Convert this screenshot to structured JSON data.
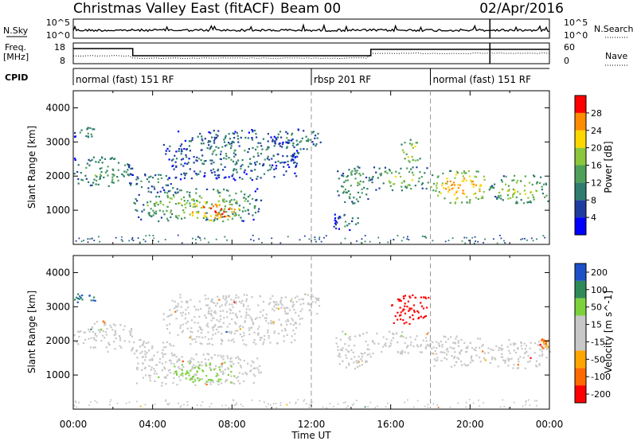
{
  "header": {
    "title": "Christmas Valley East (fitACF)",
    "beam": "Beam 00",
    "date": "02/Apr/2016"
  },
  "panel_labels": {
    "nsky": "N.Sky",
    "nsearch": "N.Search",
    "freq_line1": "Freq.",
    "freq_line2": "[MHz]",
    "nave": "Nave",
    "cpid": "CPID"
  },
  "top_axes": {
    "noise_ticks": [
      "10^5",
      "10^0"
    ],
    "freq_ticks": [
      "18",
      "8"
    ],
    "nave_ticks": [
      "60",
      "0"
    ]
  },
  "cpid_segments": [
    {
      "label": "normal (fast) 151 RF",
      "start": 0,
      "end": 12
    },
    {
      "label": "rbsp 201 RF",
      "start": 12,
      "end": 18
    },
    {
      "label": "normal (fast) 151 RF",
      "start": 18,
      "end": 24
    }
  ],
  "chart_data": [
    {
      "type": "heatmap",
      "title": "",
      "ylabel": "Slant Range [km]",
      "x_range": [
        0,
        24
      ],
      "ylim": [
        0,
        4500
      ],
      "y_ticks": [
        "1000",
        "2000",
        "3000",
        "4000"
      ],
      "colorbar": {
        "label": "Power [dB]",
        "ticks": [
          "4",
          "8",
          "12",
          "16",
          "20",
          "24",
          "28"
        ],
        "range": [
          0,
          30
        ],
        "colors": [
          "#0000ff",
          "#1e3ca0",
          "#2e7d6e",
          "#4fa05a",
          "#8cc63c",
          "#ffd700",
          "#ff8c00",
          "#ff0000"
        ]
      },
      "regions": [
        {
          "t0": 0.0,
          "t1": 1.2,
          "r0": 3150,
          "r1": 3450,
          "level": 0.4
        },
        {
          "t0": 0.0,
          "t1": 3.0,
          "r0": 1700,
          "r1": 2600,
          "level": 0.45
        },
        {
          "t0": 2.8,
          "t1": 5.2,
          "r0": 1550,
          "r1": 2100,
          "level": 0.35
        },
        {
          "t0": 3.0,
          "t1": 9.5,
          "r0": 700,
          "r1": 1650,
          "level": 0.55
        },
        {
          "t0": 5.5,
          "t1": 8.5,
          "r0": 700,
          "r1": 1300,
          "level": 0.95
        },
        {
          "t0": 4.5,
          "t1": 11.5,
          "r0": 1900,
          "r1": 3400,
          "level": 0.3
        },
        {
          "t0": 10.0,
          "t1": 12.5,
          "r0": 2800,
          "r1": 3400,
          "level": 0.4
        },
        {
          "t0": 13.2,
          "t1": 15.0,
          "r0": 1200,
          "r1": 2300,
          "level": 0.45
        },
        {
          "t0": 13.0,
          "t1": 14.5,
          "r0": 400,
          "r1": 900,
          "level": 0.3
        },
        {
          "t0": 15.0,
          "t1": 18.0,
          "r0": 1600,
          "r1": 2300,
          "level": 0.55
        },
        {
          "t0": 16.5,
          "t1": 17.5,
          "r0": 2400,
          "r1": 3100,
          "level": 0.65
        },
        {
          "t0": 18.0,
          "t1": 21.0,
          "r0": 1200,
          "r1": 2200,
          "level": 0.8
        },
        {
          "t0": 21.0,
          "t1": 24.0,
          "r0": 1200,
          "r1": 2100,
          "level": 0.6
        }
      ]
    },
    {
      "type": "heatmap",
      "title": "",
      "ylabel": "Slant Range [km]",
      "xlabel": "Time UT",
      "x_range": [
        0,
        24
      ],
      "x_ticks": [
        "00:00",
        "04:00",
        "08:00",
        "12:00",
        "16:00",
        "20:00",
        "00:00"
      ],
      "ylim": [
        0,
        4500
      ],
      "y_ticks": [
        "1000",
        "2000",
        "3000",
        "4000"
      ],
      "colorbar": {
        "label": "Velocity [m s^-1]",
        "ticks": [
          "200",
          "100",
          "50",
          "15",
          "-15",
          "-50",
          "-100",
          "-200"
        ],
        "colors": [
          "#1e50c8",
          "#2e8b57",
          "#7cd23c",
          "#c8c8c8",
          "#c8c8c8",
          "#ffa500",
          "#ff6a00",
          "#ff0000"
        ]
      },
      "regions": [
        {
          "t0": 0.0,
          "t1": 1.2,
          "r0": 3150,
          "r1": 3450,
          "velocity": 150
        },
        {
          "t0": 0.0,
          "t1": 3.0,
          "r0": 1700,
          "r1": 2600,
          "velocity": 0
        },
        {
          "t0": 2.8,
          "t1": 5.2,
          "r0": 1550,
          "r1": 2100,
          "velocity": 0
        },
        {
          "t0": 3.0,
          "t1": 9.5,
          "r0": 700,
          "r1": 1650,
          "velocity": 0
        },
        {
          "t0": 5.0,
          "t1": 8.0,
          "r0": 800,
          "r1": 1400,
          "velocity": 40
        },
        {
          "t0": 4.5,
          "t1": 11.5,
          "r0": 1900,
          "r1": 3400,
          "velocity": 0
        },
        {
          "t0": 10.0,
          "t1": 12.5,
          "r0": 2800,
          "r1": 3400,
          "velocity": 0
        },
        {
          "t0": 13.2,
          "t1": 15.0,
          "r0": 1200,
          "r1": 2300,
          "velocity": 0
        },
        {
          "t0": 15.0,
          "t1": 18.0,
          "r0": 1600,
          "r1": 2300,
          "velocity": 0
        },
        {
          "t0": 16.0,
          "t1": 18.0,
          "r0": 2500,
          "r1": 3400,
          "velocity": -200
        },
        {
          "t0": 18.0,
          "t1": 21.0,
          "r0": 1200,
          "r1": 2200,
          "velocity": 0
        },
        {
          "t0": 21.0,
          "t1": 24.0,
          "r0": 1200,
          "r1": 2100,
          "velocity": 0
        },
        {
          "t0": 23.5,
          "t1": 24.0,
          "r0": 1800,
          "r1": 2100,
          "velocity": -80
        }
      ]
    }
  ]
}
